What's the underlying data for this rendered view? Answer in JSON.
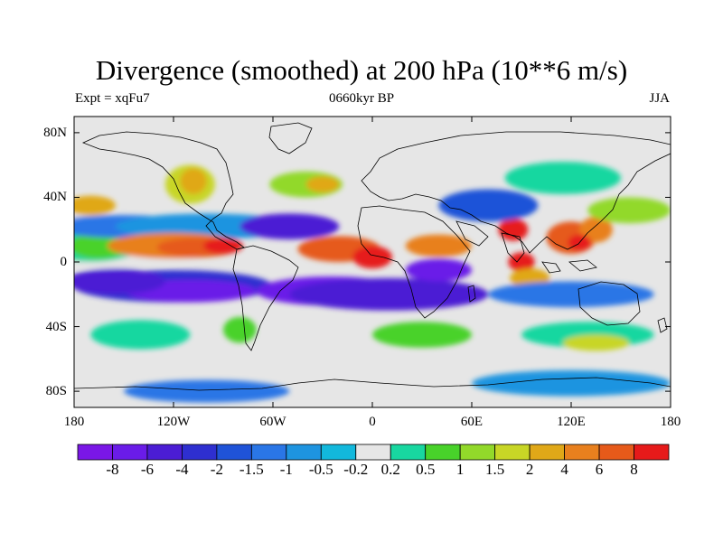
{
  "title": "Divergence (smoothed) at 200 hPa (10**6 m/s)",
  "subtitle": {
    "left": "Expt = xqFu7",
    "center": "0660kyr BP",
    "right": "JJA"
  },
  "axes": {
    "y_ticks": [
      {
        "label": "80N",
        "lat": 80
      },
      {
        "label": "40N",
        "lat": 40
      },
      {
        "label": "0",
        "lat": 0
      },
      {
        "label": "40S",
        "lat": -40
      },
      {
        "label": "80S",
        "lat": -80
      }
    ],
    "x_ticks": [
      {
        "label": "180",
        "lon": -180
      },
      {
        "label": "120W",
        "lon": -120
      },
      {
        "label": "60W",
        "lon": -60
      },
      {
        "label": "0",
        "lon": 0
      },
      {
        "label": "60E",
        "lon": 60
      },
      {
        "label": "120E",
        "lon": 120
      },
      {
        "label": "180",
        "lon": 180
      }
    ],
    "lon_range": [
      -180,
      180
    ],
    "lat_range": [
      -90,
      90
    ]
  },
  "colorbar": {
    "colors": [
      "#7a17e6",
      "#6a1ce8",
      "#4b1dd4",
      "#2e2fd0",
      "#1f53d8",
      "#2a76e6",
      "#1e94e0",
      "#12b8dc",
      "#e6e6e6",
      "#18d7a0",
      "#48d22a",
      "#92d92a",
      "#c8d626",
      "#e0a818",
      "#e8801e",
      "#e65a1a",
      "#e61a1a"
    ],
    "labels": [
      "-8",
      "-6",
      "-4",
      "-2",
      "-1.5",
      "-1",
      "-0.5",
      "-0.2",
      "0.2",
      "0.5",
      "1",
      "1.5",
      "2",
      "4",
      "6",
      "8"
    ]
  },
  "field_regions": [
    {
      "level": 8,
      "lon": -180,
      "lat": 12,
      "rx": 95,
      "ry": 16
    },
    {
      "level": 9,
      "lon": -170,
      "lat": 10,
      "rx": 30,
      "ry": 10
    },
    {
      "level": 10,
      "lon": -165,
      "lat": 10,
      "rx": 18,
      "ry": 8
    },
    {
      "level": 5,
      "lon": -150,
      "lat": 22,
      "rx": 45,
      "ry": 7
    },
    {
      "level": 6,
      "lon": -100,
      "lat": 22,
      "rx": 55,
      "ry": 8
    },
    {
      "level": 14,
      "lon": -120,
      "lat": 10,
      "rx": 40,
      "ry": 8
    },
    {
      "level": 15,
      "lon": -105,
      "lat": 9,
      "rx": 25,
      "ry": 6
    },
    {
      "level": 16,
      "lon": -90,
      "lat": 10,
      "rx": 12,
      "ry": 5
    },
    {
      "level": 3,
      "lon": -120,
      "lat": -15,
      "rx": 60,
      "ry": 10
    },
    {
      "level": 1,
      "lon": -110,
      "lat": -18,
      "rx": 40,
      "ry": 7
    },
    {
      "level": 2,
      "lon": -155,
      "lat": -12,
      "rx": 30,
      "ry": 8
    },
    {
      "level": 12,
      "lon": -110,
      "lat": 48,
      "rx": 15,
      "ry": 12
    },
    {
      "level": 13,
      "lon": -108,
      "lat": 50,
      "rx": 8,
      "ry": 8
    },
    {
      "level": 11,
      "lon": -40,
      "lat": 48,
      "rx": 22,
      "ry": 8
    },
    {
      "level": 13,
      "lon": -30,
      "lat": 48,
      "rx": 10,
      "ry": 5
    },
    {
      "level": 13,
      "lon": -170,
      "lat": 35,
      "rx": 15,
      "ry": 6
    },
    {
      "level": 2,
      "lon": -50,
      "lat": 22,
      "rx": 30,
      "ry": 8
    },
    {
      "level": 15,
      "lon": -20,
      "lat": 8,
      "rx": 25,
      "ry": 8
    },
    {
      "level": 16,
      "lon": 0,
      "lat": 3,
      "rx": 12,
      "ry": 7
    },
    {
      "level": 14,
      "lon": 40,
      "lat": 10,
      "rx": 20,
      "ry": 7
    },
    {
      "level": 1,
      "lon": -25,
      "lat": -18,
      "rx": 45,
      "ry": 9
    },
    {
      "level": 2,
      "lon": 10,
      "lat": -20,
      "rx": 60,
      "ry": 10
    },
    {
      "level": 1,
      "lon": 40,
      "lat": -5,
      "rx": 20,
      "ry": 7
    },
    {
      "level": 16,
      "lon": 85,
      "lat": 20,
      "rx": 9,
      "ry": 7
    },
    {
      "level": 16,
      "lon": 90,
      "lat": 0,
      "rx": 8,
      "ry": 6
    },
    {
      "level": 15,
      "lon": 120,
      "lat": 15,
      "rx": 15,
      "ry": 10
    },
    {
      "level": 14,
      "lon": 135,
      "lat": 20,
      "rx": 10,
      "ry": 8
    },
    {
      "level": 16,
      "lon": 125,
      "lat": 12,
      "rx": 7,
      "ry": 5
    },
    {
      "level": 13,
      "lon": 95,
      "lat": -10,
      "rx": 12,
      "ry": 6
    },
    {
      "level": 4,
      "lon": 70,
      "lat": 35,
      "rx": 30,
      "ry": 10
    },
    {
      "level": 9,
      "lon": 115,
      "lat": 52,
      "rx": 35,
      "ry": 10
    },
    {
      "level": 11,
      "lon": 155,
      "lat": 32,
      "rx": 25,
      "ry": 8
    },
    {
      "level": 5,
      "lon": 120,
      "lat": -20,
      "rx": 50,
      "ry": 8
    },
    {
      "level": 10,
      "lon": -80,
      "lat": -42,
      "rx": 10,
      "ry": 8
    },
    {
      "level": 9,
      "lon": -140,
      "lat": -45,
      "rx": 30,
      "ry": 9
    },
    {
      "level": 10,
      "lon": 30,
      "lat": -45,
      "rx": 30,
      "ry": 8
    },
    {
      "level": 9,
      "lon": 130,
      "lat": -45,
      "rx": 40,
      "ry": 8
    },
    {
      "level": 12,
      "lon": 135,
      "lat": -50,
      "rx": 20,
      "ry": 5
    },
    {
      "level": 6,
      "lon": 120,
      "lat": -75,
      "rx": 60,
      "ry": 8
    },
    {
      "level": 5,
      "lon": -100,
      "lat": -80,
      "rx": 50,
      "ry": 7
    }
  ]
}
